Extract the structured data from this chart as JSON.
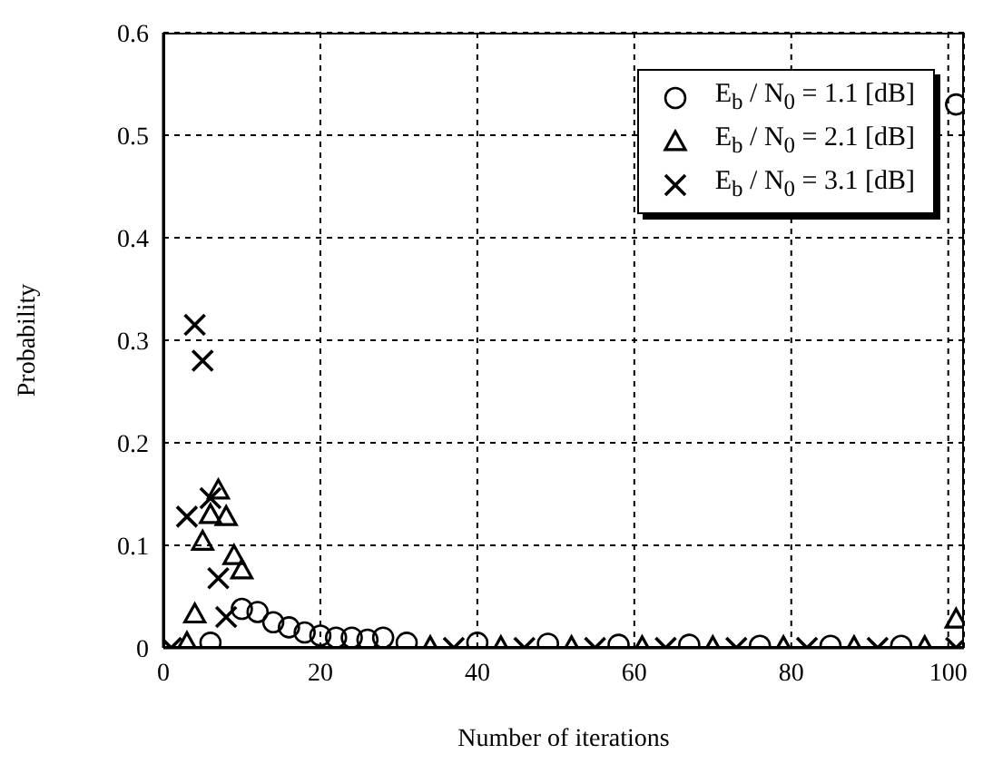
{
  "chart_data": {
    "type": "scatter",
    "xlabel": "Number of iterations",
    "ylabel": "Probability",
    "series": [
      {
        "name": "E$_{b}$ / N$_{0}$ = 1.1 [dB]",
        "color": "#000000",
        "marker": "circle",
        "x": [
          6,
          10,
          12,
          14,
          16,
          18,
          20,
          22,
          24,
          26,
          28,
          31,
          40,
          49,
          58,
          67,
          76,
          85,
          94,
          101
        ],
        "values": [
          0.005,
          0.038,
          0.035,
          0.025,
          0.02,
          0.015,
          0.012,
          0.01,
          0.01,
          0.008,
          0.01,
          0.005,
          0.005,
          0.004,
          0.003,
          0.003,
          0.002,
          0.002,
          0.002,
          0.53
        ]
      },
      {
        "name": "E$_{b}$ / N$_{0}$ = 2.1 [dB]",
        "color": "#000000",
        "marker": "triangle",
        "x": [
          3,
          4,
          5,
          6,
          7,
          8,
          9,
          10,
          34,
          43,
          52,
          61,
          70,
          79,
          88,
          97,
          101
        ],
        "values": [
          0.005,
          0.033,
          0.104,
          0.13,
          0.154,
          0.128,
          0.09,
          0.076,
          0.001,
          0.001,
          0.001,
          0.001,
          0.001,
          0.001,
          0.001,
          0.001,
          0.028
        ]
      },
      {
        "name": "E$_{b}$ / N$_{0}$ = 3.1 [dB]",
        "color": "#000000",
        "marker": "cross",
        "x": [
          1,
          3,
          4,
          5,
          6,
          7,
          8,
          37,
          46,
          55,
          64,
          73,
          82,
          91,
          101
        ],
        "values": [
          0,
          0.128,
          0.315,
          0.28,
          0.146,
          0.068,
          0.03,
          0,
          0,
          0,
          0,
          0,
          0,
          0,
          0
        ]
      }
    ],
    "xlim": [
      0,
      102
    ],
    "xticks": [
      0,
      20,
      40,
      60,
      80,
      100
    ],
    "ylim": [
      0,
      0.6
    ],
    "yticks": [
      0,
      0.1,
      0.2,
      0.3,
      0.4,
      0.5,
      0.6
    ],
    "grid": true,
    "legend": "top right"
  }
}
